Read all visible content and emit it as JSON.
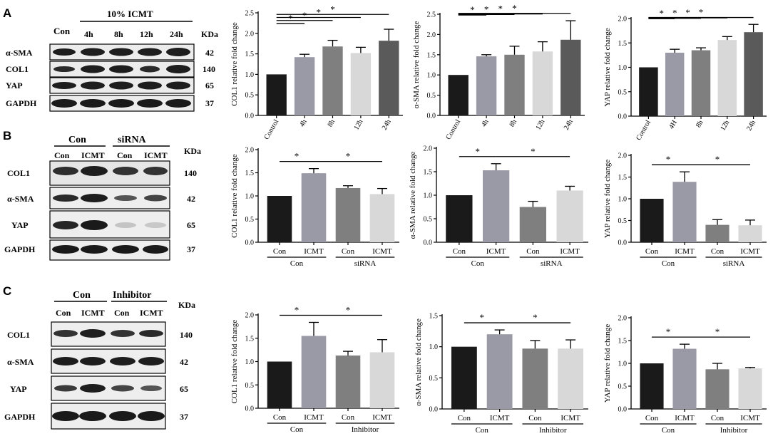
{
  "colors": {
    "black": "#000000",
    "bar_dark": "#1a1a1a",
    "bar_mid1": "#9a9aa6",
    "bar_mid2": "#7f7f7f",
    "bar_light": "#d8d8d8",
    "bar_dark2": "#5a5a5a",
    "band": "#1e1e1e",
    "blot_bg": "#eeeeee"
  },
  "panels": {
    "A": {
      "letter": "A",
      "blot": {
        "group_label": "10% ICMT",
        "con_label": "Con",
        "lanes": [
          "4h",
          "8h",
          "12h",
          "24h"
        ],
        "kda_label": "KDa",
        "rows": [
          {
            "protein": "α-SMA",
            "kda": "42"
          },
          {
            "protein": "COL1",
            "kda": "140"
          },
          {
            "protein": "YAP",
            "kda": "65"
          },
          {
            "protein": "GAPDH",
            "kda": "37"
          }
        ]
      }
    },
    "B": {
      "letter": "B",
      "blot": {
        "group1": "Con",
        "group2": "siRNA",
        "lanes": [
          "Con",
          "ICMT",
          "Con",
          "ICMT"
        ],
        "kda_label": "KDa",
        "rows": [
          {
            "protein": "COL1",
            "kda": "140"
          },
          {
            "protein": "α-SMA",
            "kda": "42"
          },
          {
            "protein": "YAP",
            "kda": "65"
          },
          {
            "protein": "GAPDH",
            "kda": "37"
          }
        ]
      }
    },
    "C": {
      "letter": "C",
      "blot": {
        "group1": "Con",
        "group2": "Inhibitor",
        "lanes": [
          "Con",
          "ICMT",
          "Con",
          "ICMT"
        ],
        "kda_label": "KDa",
        "rows": [
          {
            "protein": "COL1",
            "kda": "140"
          },
          {
            "protein": "α-SMA",
            "kda": "42"
          },
          {
            "protein": "YAP",
            "kda": "65"
          },
          {
            "protein": "GAPDH",
            "kda": "37"
          }
        ]
      }
    }
  },
  "chart_data": [
    {
      "id": "A-col1",
      "type": "bar",
      "ylabel": "COL1 relative fold change",
      "categories": [
        "Control",
        "4h",
        "8h",
        "12h",
        "24h"
      ],
      "values": [
        1.0,
        1.42,
        1.68,
        1.52,
        1.82
      ],
      "errors": [
        0,
        0.07,
        0.15,
        0.14,
        0.28
      ],
      "ylim": [
        0,
        2.5
      ],
      "yticks": [
        "0.0",
        "0.5",
        "1.0",
        "1.5",
        "2.0",
        "2.5"
      ],
      "significance": [
        {
          "from": 0,
          "to": 1,
          "label": "*"
        },
        {
          "from": 0,
          "to": 2,
          "label": "*"
        },
        {
          "from": 0,
          "to": 3,
          "label": "*"
        },
        {
          "from": 0,
          "to": 4,
          "label": "*"
        }
      ]
    },
    {
      "id": "A-asma",
      "type": "bar",
      "ylabel": "α-SMA relative fold change",
      "categories": [
        "Control",
        "4h",
        "8h",
        "12h",
        "24h"
      ],
      "values": [
        1.0,
        1.46,
        1.5,
        1.58,
        1.87
      ],
      "errors": [
        0,
        0.04,
        0.21,
        0.24,
        0.47
      ],
      "ylim": [
        0,
        2.5
      ],
      "yticks": [
        "0.0",
        "0.5",
        "1.0",
        "1.5",
        "2.0",
        "2.5"
      ],
      "significance": [
        {
          "from": 0,
          "to": 1,
          "label": "*"
        },
        {
          "from": 0,
          "to": 2,
          "label": "*"
        },
        {
          "from": 0,
          "to": 3,
          "label": "*"
        },
        {
          "from": 0,
          "to": 4,
          "label": "*"
        }
      ]
    },
    {
      "id": "A-yap",
      "type": "bar",
      "ylabel": "YAP relative fold change",
      "categories": [
        "Control",
        "4H",
        "8h",
        "12h",
        "24h"
      ],
      "values": [
        1.0,
        1.3,
        1.35,
        1.56,
        1.72
      ],
      "errors": [
        0,
        0.07,
        0.05,
        0.07,
        0.16
      ],
      "ylim": [
        0,
        2.0
      ],
      "yticks": [
        "0.0",
        "0.5",
        "1.0",
        "1.5",
        "2.0"
      ],
      "significance": [
        {
          "from": 0,
          "to": 1,
          "label": "*"
        },
        {
          "from": 0,
          "to": 2,
          "label": "*"
        },
        {
          "from": 0,
          "to": 3,
          "label": "*"
        },
        {
          "from": 0,
          "to": 4,
          "label": "*"
        }
      ]
    },
    {
      "id": "B-col1",
      "type": "bar",
      "ylabel": "COL1 relative fold change",
      "categories": [
        "Con",
        "ICMT",
        "Con",
        "ICMT"
      ],
      "groups": [
        {
          "label": "Con",
          "from": 0,
          "to": 1
        },
        {
          "label": "siRNA",
          "from": 2,
          "to": 3
        }
      ],
      "values": [
        1.0,
        1.49,
        1.17,
        1.04
      ],
      "errors": [
        0,
        0.1,
        0.05,
        0.12
      ],
      "ylim": [
        0,
        2.0
      ],
      "yticks": [
        "0.0",
        "0.5",
        "1.0",
        "1.5",
        "2.0"
      ],
      "significance": [
        {
          "from": 0,
          "to": 1,
          "label": "*"
        },
        {
          "from": 1,
          "to": 3,
          "label": "*"
        }
      ]
    },
    {
      "id": "B-asma",
      "type": "bar",
      "ylabel": "α-SMA relative fold change",
      "categories": [
        "Con",
        "ICMT",
        "Con",
        "ICMT"
      ],
      "groups": [
        {
          "label": "Con",
          "from": 0,
          "to": 1
        },
        {
          "label": "siRNA",
          "from": 2,
          "to": 3
        }
      ],
      "values": [
        1.0,
        1.53,
        0.75,
        1.1
      ],
      "errors": [
        0,
        0.14,
        0.12,
        0.09
      ],
      "ylim": [
        0,
        2.0
      ],
      "yticks": [
        "0.0",
        "0.5",
        "1.0",
        "1.5",
        "2.0"
      ],
      "significance": [
        {
          "from": 0,
          "to": 1,
          "label": "*"
        },
        {
          "from": 1,
          "to": 3,
          "label": "*"
        }
      ]
    },
    {
      "id": "B-yap",
      "type": "bar",
      "ylabel": "YAP relative fold change",
      "categories": [
        "Con",
        "ICMT",
        "Con",
        "ICMT"
      ],
      "groups": [
        {
          "label": "Con",
          "from": 0,
          "to": 1
        },
        {
          "label": "siRNA",
          "from": 2,
          "to": 3
        }
      ],
      "values": [
        1.0,
        1.39,
        0.4,
        0.39
      ],
      "errors": [
        0,
        0.23,
        0.12,
        0.12
      ],
      "ylim": [
        0,
        2.0
      ],
      "yticks": [
        "0.0",
        "0.5",
        "1.0",
        "1.5",
        "2.0"
      ],
      "significance": [
        {
          "from": 0,
          "to": 1,
          "label": "*"
        },
        {
          "from": 1,
          "to": 3,
          "label": "*"
        }
      ]
    },
    {
      "id": "C-col1",
      "type": "bar",
      "ylabel": "COL1 relative fold change",
      "categories": [
        "Con",
        "ICMT",
        "Con",
        "ICMT"
      ],
      "groups": [
        {
          "label": "Con",
          "from": 0,
          "to": 1
        },
        {
          "label": "Inhibitor",
          "from": 2,
          "to": 3
        }
      ],
      "values": [
        1.0,
        1.55,
        1.13,
        1.2
      ],
      "errors": [
        0,
        0.29,
        0.09,
        0.27
      ],
      "ylim": [
        0,
        2.0
      ],
      "yticks": [
        "0.0",
        "0.5",
        "1.0",
        "1.5",
        "2.0"
      ],
      "significance": [
        {
          "from": 0,
          "to": 1,
          "label": "*"
        },
        {
          "from": 1,
          "to": 3,
          "label": "*"
        }
      ]
    },
    {
      "id": "C-asma",
      "type": "bar",
      "ylabel": "α-SMA relative fold change",
      "categories": [
        "Con",
        "ICMT",
        "Con",
        "ICMT"
      ],
      "groups": [
        {
          "label": "Con",
          "from": 0,
          "to": 1
        },
        {
          "label": "Inhibitor",
          "from": 2,
          "to": 3
        }
      ],
      "values": [
        1.0,
        1.2,
        0.97,
        0.97
      ],
      "errors": [
        0,
        0.07,
        0.13,
        0.14
      ],
      "ylim": [
        0,
        1.5
      ],
      "yticks": [
        "0.0",
        "0.5",
        "1.0",
        "1.5"
      ],
      "significance": [
        {
          "from": 0,
          "to": 1,
          "label": "*"
        },
        {
          "from": 1,
          "to": 3,
          "label": "*"
        }
      ]
    },
    {
      "id": "C-yap",
      "type": "bar",
      "ylabel": "YAP relative fold change",
      "categories": [
        "Con",
        "ICMT",
        "Con",
        "ICMT"
      ],
      "groups": [
        {
          "label": "Con",
          "from": 0,
          "to": 1
        },
        {
          "label": "Inhibitor",
          "from": 2,
          "to": 3
        }
      ],
      "values": [
        1.0,
        1.32,
        0.87,
        0.89
      ],
      "errors": [
        0,
        0.1,
        0.13,
        0.02
      ],
      "ylim": [
        0,
        2.0
      ],
      "yticks": [
        "0.0",
        "0.5",
        "1.0",
        "1.5",
        "2.0"
      ],
      "significance": [
        {
          "from": 0,
          "to": 1,
          "label": "*"
        },
        {
          "from": 1,
          "to": 3,
          "label": "*"
        }
      ]
    }
  ]
}
